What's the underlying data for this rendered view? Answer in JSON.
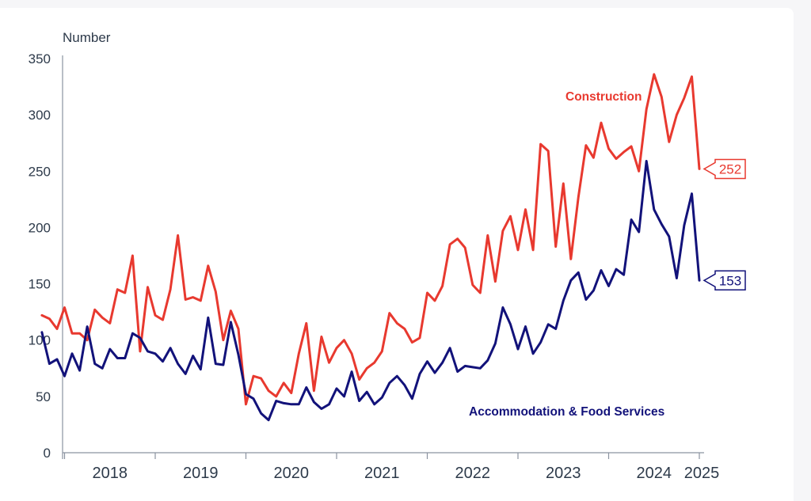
{
  "chart_data": {
    "type": "line",
    "ylabel": "Number",
    "ylim": [
      0,
      350
    ],
    "yticks": [
      0,
      50,
      100,
      150,
      200,
      250,
      300,
      350
    ],
    "xtick_labels": [
      "2018",
      "2019",
      "2020",
      "2021",
      "2022",
      "2023",
      "2024",
      "2025"
    ],
    "start": "2017-10",
    "grid": false,
    "colors": {
      "construction": "#e8392f",
      "accommodation": "#12127a",
      "axis": "#8a93a0"
    },
    "series": [
      {
        "name": "Construction",
        "end_label": "252",
        "values": [
          122,
          119,
          110,
          129,
          106,
          106,
          100,
          127,
          120,
          115,
          145,
          142,
          175,
          90,
          147,
          122,
          118,
          145,
          193,
          136,
          138,
          135,
          166,
          143,
          100,
          126,
          110,
          43,
          68,
          66,
          55,
          50,
          62,
          53,
          88,
          115,
          55,
          103,
          80,
          93,
          100,
          88,
          65,
          75,
          80,
          90,
          124,
          115,
          110,
          98,
          102,
          142,
          135,
          148,
          185,
          190,
          182,
          149,
          142,
          193,
          152,
          197,
          210,
          180,
          216,
          180,
          274,
          268,
          183,
          239,
          172,
          227,
          273,
          262,
          293,
          270,
          261,
          267,
          272,
          250,
          305,
          336,
          316,
          276,
          300,
          315,
          334,
          252
        ]
      },
      {
        "name": "Accommodation & Food Services",
        "end_label": "153",
        "values": [
          107,
          79,
          83,
          68,
          88,
          73,
          112,
          79,
          75,
          92,
          84,
          84,
          106,
          102,
          90,
          88,
          81,
          93,
          79,
          70,
          86,
          74,
          120,
          79,
          78,
          116,
          87,
          52,
          48,
          35,
          29,
          46,
          44,
          43,
          43,
          58,
          45,
          39,
          43,
          57,
          50,
          72,
          46,
          54,
          43,
          49,
          62,
          68,
          60,
          48,
          70,
          81,
          71,
          80,
          93,
          72,
          77,
          76,
          75,
          82,
          97,
          129,
          114,
          92,
          112,
          88,
          98,
          114,
          110,
          135,
          153,
          160,
          136,
          144,
          162,
          148,
          163,
          158,
          207,
          196,
          259,
          216,
          203,
          192,
          155,
          202,
          230,
          153
        ]
      }
    ]
  }
}
